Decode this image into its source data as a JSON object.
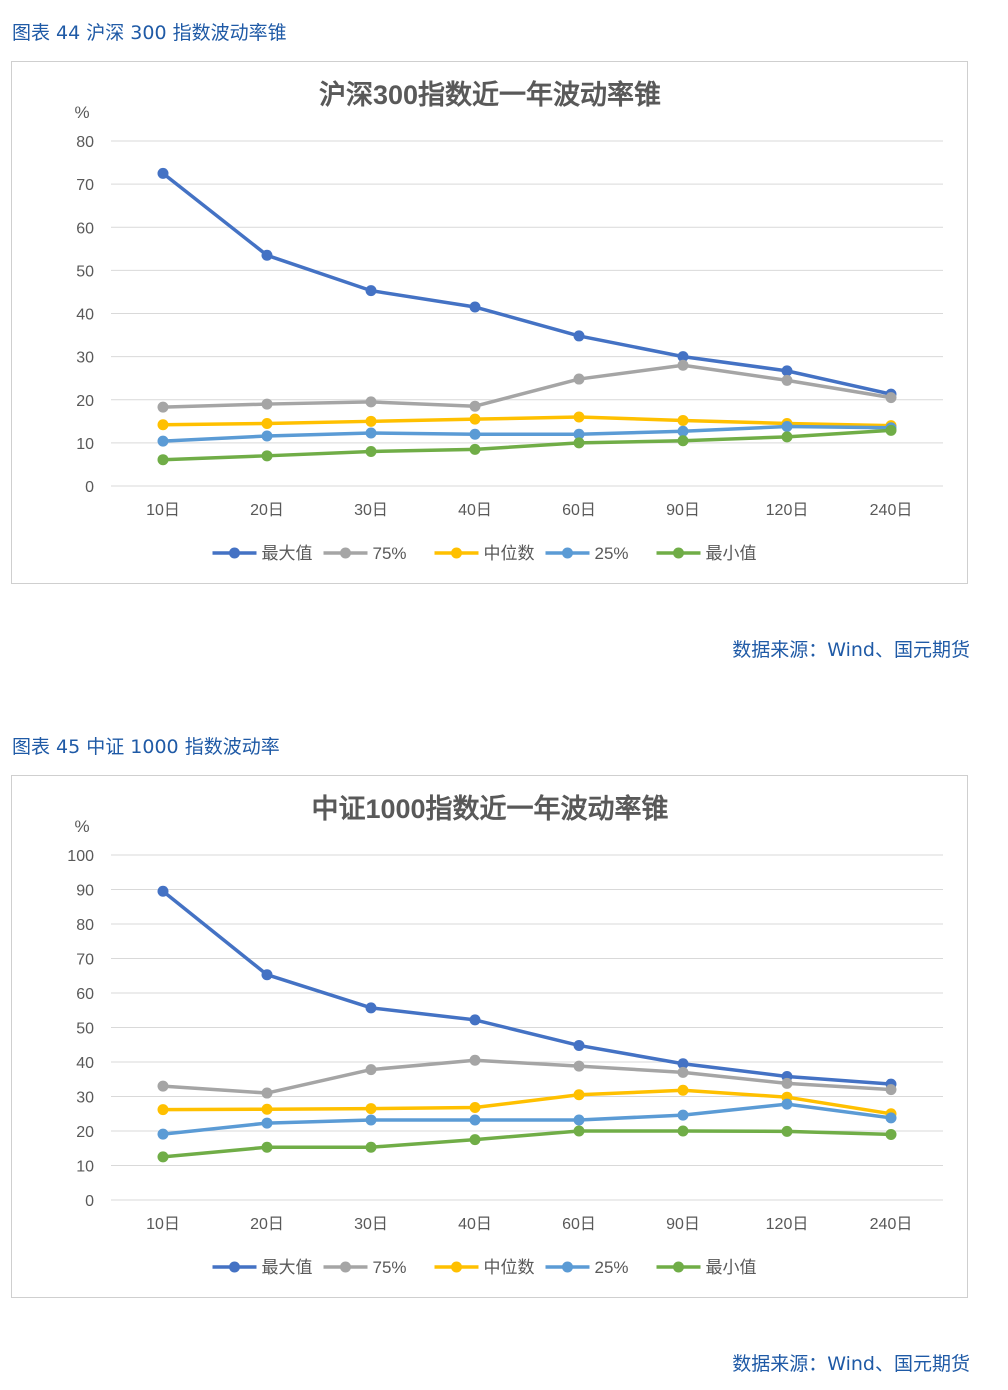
{
  "figures": [
    {
      "caption": "图表 44  沪深 300 指数波动率锥",
      "source": "数据来源：Wind、国元期货",
      "chart_data": {
        "type": "line",
        "title": "沪深300指数近一年波动率锥",
        "unit": "%",
        "ylim": [
          0,
          80
        ],
        "yticks": [
          0,
          10,
          20,
          30,
          40,
          50,
          60,
          70,
          80
        ],
        "categories": [
          "10日",
          "20日",
          "30日",
          "40日",
          "60日",
          "90日",
          "120日",
          "240日"
        ],
        "legend_position": "bottom",
        "grid": true,
        "series": [
          {
            "name": "最大值",
            "color": "#4472c4",
            "values": [
              72.5,
              53.5,
              45.3,
              41.5,
              34.8,
              30.0,
              26.7,
              21.3
            ]
          },
          {
            "name": "75%",
            "color": "#a5a5a5",
            "values": [
              18.3,
              19.0,
              19.5,
              18.5,
              24.8,
              28.0,
              24.5,
              20.5
            ]
          },
          {
            "name": "中位数",
            "color": "#ffc000",
            "values": [
              14.2,
              14.5,
              15.0,
              15.5,
              16.0,
              15.2,
              14.5,
              14.0
            ]
          },
          {
            "name": "25%",
            "color": "#5b9bd5",
            "values": [
              10.4,
              11.6,
              12.3,
              12.0,
              12.0,
              12.7,
              13.8,
              13.5
            ]
          },
          {
            "name": "最小值",
            "color": "#70ad47",
            "values": [
              6.1,
              7.0,
              8.0,
              8.5,
              10.0,
              10.5,
              11.4,
              12.9
            ]
          }
        ]
      }
    },
    {
      "caption": "图表 45  中证 1000 指数波动率",
      "source": "数据来源：Wind、国元期货",
      "chart_data": {
        "type": "line",
        "title": "中证1000指数近一年波动率锥",
        "unit": "%",
        "ylim": [
          0,
          100
        ],
        "yticks": [
          0,
          10,
          20,
          30,
          40,
          50,
          60,
          70,
          80,
          90,
          100
        ],
        "categories": [
          "10日",
          "20日",
          "30日",
          "40日",
          "60日",
          "90日",
          "120日",
          "240日"
        ],
        "legend_position": "bottom",
        "grid": true,
        "series": [
          {
            "name": "最大值",
            "color": "#4472c4",
            "values": [
              89.5,
              65.3,
              55.7,
              52.2,
              44.8,
              39.5,
              35.8,
              33.6
            ]
          },
          {
            "name": "75%",
            "color": "#a5a5a5",
            "values": [
              33.0,
              31.0,
              37.8,
              40.5,
              38.8,
              37.0,
              33.8,
              32.0
            ]
          },
          {
            "name": "中位数",
            "color": "#ffc000",
            "values": [
              26.2,
              26.3,
              26.5,
              26.8,
              30.5,
              31.8,
              29.8,
              25.0
            ]
          },
          {
            "name": "25%",
            "color": "#5b9bd5",
            "values": [
              19.1,
              22.3,
              23.2,
              23.2,
              23.2,
              24.6,
              27.8,
              23.8
            ]
          },
          {
            "name": "最小值",
            "color": "#70ad47",
            "values": [
              12.5,
              15.3,
              15.3,
              17.5,
              20.0,
              20.0,
              19.9,
              19.0
            ]
          }
        ]
      }
    }
  ]
}
